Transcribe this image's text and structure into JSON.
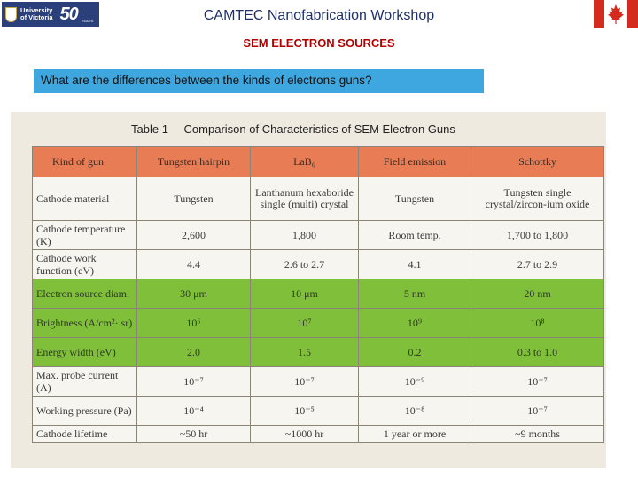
{
  "header": {
    "logo_line1": "University",
    "logo_line2": "of Victoria",
    "logo_anniversary": "50",
    "logo_years": "YEARS",
    "workshop_title": "CAMTEC Nanofabrication Workshop",
    "section_title": "SEM ELECTRON SOURCES"
  },
  "question": "What are the differences between the kinds of electrons guns?",
  "table": {
    "caption_number": "Table 1",
    "caption_text": "Comparison of Characteristics of SEM Electron Guns",
    "columns": [
      "Kind of gun",
      "Tungsten hairpin",
      "LaB₆",
      "Field emission",
      "Schottky"
    ],
    "rows": [
      {
        "label": "Cathode material",
        "values": [
          "Tungsten",
          "Lanthanum hexaboride single (multi) crystal",
          "Tungsten",
          "Tungsten single crystal/zircon-ium oxide"
        ]
      },
      {
        "label": "Cathode temperature (K)",
        "values": [
          "2,600",
          "1,800",
          "Room temp.",
          "1,700 to 1,800"
        ]
      },
      {
        "label": "Cathode work function (eV)",
        "values": [
          "4.4",
          "2.6 to 2.7",
          "4.1",
          "2.7 to 2.9"
        ]
      },
      {
        "label": "Electron source diam.",
        "values": [
          "30 μm",
          "10 μm",
          "5 nm",
          "20 nm"
        ]
      },
      {
        "label": "Brightness (A/cm²· sr)",
        "values": [
          "10⁶",
          "10⁷",
          "10⁹",
          "10⁸"
        ]
      },
      {
        "label": "Energy width (eV)",
        "values": [
          "2.0",
          "1.5",
          "0.2",
          "0.3 to 1.0"
        ]
      },
      {
        "label": "Max. probe current (A)",
        "values": [
          "10⁻⁷",
          "10⁻⁷",
          "10⁻⁹",
          "10⁻⁷"
        ]
      },
      {
        "label": "Working pressure (Pa)",
        "values": [
          "10⁻⁴",
          "10⁻⁵",
          "10⁻⁸",
          "10⁻⁷"
        ]
      },
      {
        "label": "Cathode lifetime",
        "values": [
          "~50 hr",
          "~1000 hr",
          "1 year or more",
          "~9 months"
        ]
      }
    ]
  },
  "colors": {
    "header_row": "#e87d55",
    "highlight_rows": "#7fbf3a",
    "question_box": "#3fa7e0",
    "section_title": "#b00000"
  }
}
